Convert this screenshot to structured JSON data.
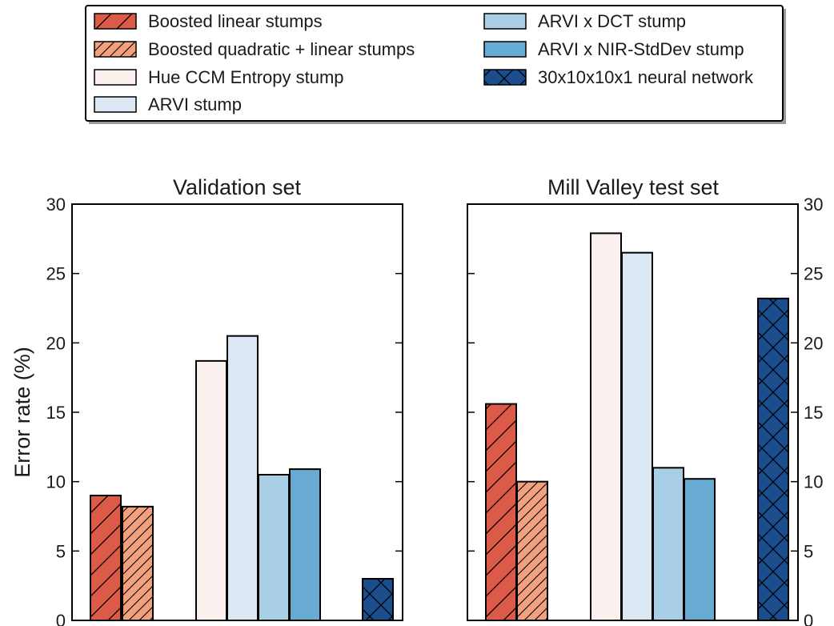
{
  "colors": {
    "linear": "#dc5b48",
    "quadratic": "#f2a07d",
    "hue": "#faf0ee",
    "arvi": "#dbe7f3",
    "arvi_dct": "#a9cfe6",
    "arvi_nir": "#68abd2",
    "nn": "#1b4c8c",
    "axis": "#000000",
    "text": "#1a1a1a"
  },
  "legend": {
    "items": [
      {
        "label": "Boosted linear stumps",
        "color": "linear",
        "hatch": "diag"
      },
      {
        "label": "Boosted quadratic + linear stumps",
        "color": "quadratic",
        "hatch": "diag-dense"
      },
      {
        "label": "Hue CCM Entropy stump",
        "color": "hue",
        "hatch": "none"
      },
      {
        "label": "ARVI stump",
        "color": "arvi",
        "hatch": "none"
      },
      {
        "label": "ARVI x DCT stump",
        "color": "arvi_dct",
        "hatch": "none"
      },
      {
        "label": "ARVI x NIR-StdDev stump",
        "color": "arvi_nir",
        "hatch": "none"
      },
      {
        "label": "30x10x10x1 neural network",
        "color": "nn",
        "hatch": "cross"
      }
    ]
  },
  "chart_data": [
    {
      "type": "bar",
      "title": "Validation set",
      "ylabel": "Error rate (%)",
      "ylim": [
        0,
        30
      ],
      "yticks": [
        0,
        5,
        10,
        15,
        20,
        25,
        30
      ],
      "tick_labels_side": "left",
      "series": [
        {
          "name": "Boosted linear stumps",
          "value": 9.0
        },
        {
          "name": "Boosted quadratic + linear stumps",
          "value": 8.2
        },
        {
          "name": "Hue CCM Entropy stump",
          "value": 18.7
        },
        {
          "name": "ARVI stump",
          "value": 20.5
        },
        {
          "name": "ARVI x DCT stump",
          "value": 10.5
        },
        {
          "name": "ARVI x NIR-StdDev stump",
          "value": 10.9
        },
        {
          "name": "30x10x10x1 neural network",
          "value": 3.0
        }
      ]
    },
    {
      "type": "bar",
      "title": "Mill Valley test set",
      "ylabel": "",
      "ylim": [
        0,
        30
      ],
      "yticks": [
        0,
        5,
        10,
        15,
        20,
        25,
        30
      ],
      "tick_labels_side": "right",
      "series": [
        {
          "name": "Boosted linear stumps",
          "value": 15.6
        },
        {
          "name": "Boosted quadratic + linear stumps",
          "value": 10.0
        },
        {
          "name": "Hue CCM Entropy stump",
          "value": 27.9
        },
        {
          "name": "ARVI stump",
          "value": 26.5
        },
        {
          "name": "ARVI x DCT stump",
          "value": 11.0
        },
        {
          "name": "ARVI x NIR-StdDev stump",
          "value": 10.2
        },
        {
          "name": "30x10x10x1 neural network",
          "value": 23.2
        }
      ]
    }
  ]
}
